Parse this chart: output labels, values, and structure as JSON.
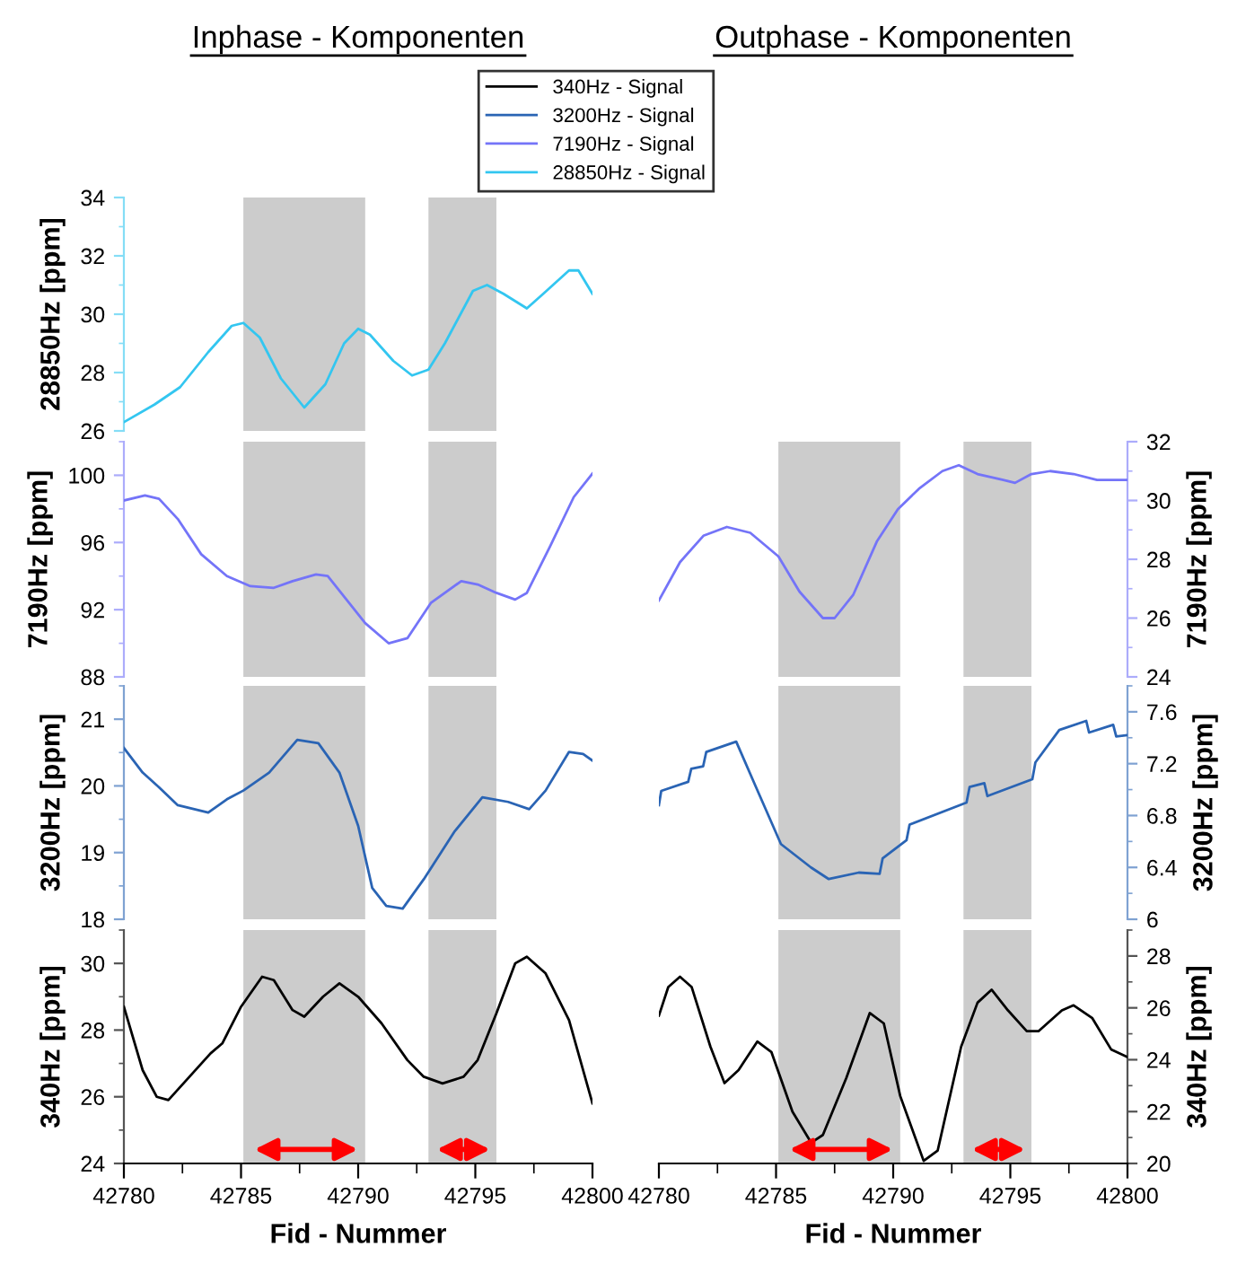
{
  "chart_data": [
    {
      "type": "line",
      "title": "Inphase - Komponenten",
      "ylabel": "28850Hz [ppm]",
      "xlim": [
        42780,
        42800
      ],
      "ylim": [
        26,
        34
      ],
      "yticks": [
        26,
        28,
        30,
        32,
        34
      ],
      "tick_labels": "y",
      "legend": "top",
      "bands": [
        {
          "axis": "x",
          "from": 42785.1,
          "to": 42790.3,
          "color": "#cccccc"
        },
        {
          "axis": "x",
          "from": 42793,
          "to": 42795.9,
          "color": "#cccccc"
        }
      ],
      "series": [
        {
          "name": "28850Hz - Signal",
          "color": "#33c6f0",
          "x": [
            42780,
            42781.3,
            42782.4,
            42783.6,
            42784.6,
            42785.1,
            42785.8,
            42786.7,
            42787.7,
            42788.6,
            42789.4,
            42790,
            42790.5,
            42791.5,
            42792.3,
            42793,
            42793.7,
            42794.9,
            42795.5,
            42796.2,
            42797.2,
            42797.9,
            42799,
            42799.4,
            42800
          ],
          "values": [
            26.3,
            26.9,
            27.5,
            28.7,
            29.6,
            29.7,
            29.2,
            27.8,
            26.8,
            27.6,
            29.0,
            29.5,
            29.3,
            28.4,
            27.9,
            28.1,
            29.0,
            30.8,
            31.0,
            30.7,
            30.2,
            30.7,
            31.5,
            31.5,
            30.7
          ]
        }
      ]
    },
    {
      "type": "line",
      "ylabel": "7190Hz [ppm]",
      "xlim": [
        42780,
        42800
      ],
      "ylim": [
        88,
        102
      ],
      "yticks": [
        88,
        92,
        96,
        100
      ],
      "tick_labels": "y",
      "bands": [
        {
          "axis": "x",
          "from": 42785.1,
          "to": 42790.3,
          "color": "#cccccc"
        },
        {
          "axis": "x",
          "from": 42793,
          "to": 42795.9,
          "color": "#cccccc"
        }
      ],
      "series": [
        {
          "name": "7190Hz - Signal",
          "color": "#7474f8",
          "x": [
            42780,
            42780.9,
            42781.5,
            42782.3,
            42783.3,
            42784.4,
            42785.4,
            42786.4,
            42787.2,
            42788.2,
            42788.7,
            42789.5,
            42790.3,
            42791.3,
            42792.1,
            42793.1,
            42794.4,
            42795.1,
            42795.9,
            42796.7,
            42797.2,
            42798.2,
            42799.2,
            42800
          ],
          "values": [
            98.5,
            98.8,
            98.6,
            97.4,
            95.3,
            94.0,
            93.4,
            93.3,
            93.7,
            94.1,
            94.0,
            92.6,
            91.2,
            90.0,
            90.3,
            92.4,
            93.7,
            93.5,
            93.0,
            92.6,
            93.0,
            95.8,
            98.7,
            100.1
          ]
        }
      ]
    },
    {
      "type": "line",
      "ylabel": "3200Hz [ppm]",
      "xlim": [
        42780,
        42800
      ],
      "ylim": [
        18,
        21.5
      ],
      "yticks": [
        18,
        19,
        20,
        21
      ],
      "tick_labels": "y",
      "bands": [
        {
          "axis": "x",
          "from": 42785.1,
          "to": 42790.3,
          "color": "#cccccc"
        },
        {
          "axis": "x",
          "from": 42793,
          "to": 42795.9,
          "color": "#cccccc"
        }
      ],
      "series": [
        {
          "name": "3200Hz - Signal",
          "color": "#2a64b4",
          "x": [
            42780,
            42780.8,
            42781.5,
            42782.3,
            42783.6,
            42784.4,
            42785.1,
            42786.2,
            42787.4,
            42788.3,
            42789.2,
            42790,
            42790.6,
            42791.2,
            42791.9,
            42792.8,
            42794.1,
            42795.3,
            42796.4,
            42797.3,
            42798,
            42799,
            42799.6,
            42800
          ],
          "values": [
            20.57,
            20.2,
            19.98,
            19.71,
            19.6,
            19.8,
            19.93,
            20.2,
            20.69,
            20.64,
            20.2,
            19.4,
            18.47,
            18.2,
            18.16,
            18.6,
            19.31,
            19.83,
            19.76,
            19.65,
            19.93,
            20.51,
            20.48,
            20.38
          ]
        }
      ]
    },
    {
      "type": "line",
      "ylabel": "340Hz [ppm]",
      "xlabel": "Fid - Nummer",
      "xlim": [
        42780,
        42800
      ],
      "xticks": [
        42780,
        42785,
        42790,
        42795,
        42800
      ],
      "ylim": [
        24,
        31
      ],
      "yticks": [
        24,
        26,
        28,
        30
      ],
      "bands": [
        {
          "axis": "x",
          "from": 42785.1,
          "to": 42790.3,
          "color": "#cccccc"
        },
        {
          "axis": "x",
          "from": 42793,
          "to": 42795.9,
          "color": "#cccccc"
        }
      ],
      "series": [
        {
          "name": "340Hz - Signal",
          "color": "#000000",
          "x": [
            42780,
            42780.8,
            42781.4,
            42781.9,
            42782.8,
            42783.7,
            42784.2,
            42785,
            42785.9,
            42786.4,
            42787.2,
            42787.7,
            42788.5,
            42789.2,
            42790,
            42791,
            42792.1,
            42792.8,
            42793.6,
            42794.5,
            42795.1,
            42795.9,
            42796.7,
            42797.2,
            42798,
            42799,
            42800
          ],
          "values": [
            28.7,
            26.8,
            26.0,
            25.9,
            26.6,
            27.3,
            27.6,
            28.7,
            29.6,
            29.5,
            28.6,
            28.4,
            29.0,
            29.4,
            29.0,
            28.2,
            27.1,
            26.6,
            26.4,
            26.6,
            27.1,
            28.5,
            30.0,
            30.2,
            29.7,
            28.3,
            25.8
          ]
        }
      ]
    },
    {
      "type": "line",
      "title": "Outphase - Komponenten",
      "y2label": "7190Hz [ppm]",
      "xlim": [
        42780,
        42800
      ],
      "y2lim": [
        24,
        32
      ],
      "y2ticks": [
        24,
        26,
        28,
        30,
        32
      ],
      "tick_labels": "y",
      "bands": [
        {
          "axis": "x",
          "from": 42785.1,
          "to": 42790.3,
          "color": "#cccccc"
        },
        {
          "axis": "x",
          "from": 42793,
          "to": 42795.9,
          "color": "#cccccc"
        }
      ],
      "series": [
        {
          "axis": "y2",
          "color": "#7474f8",
          "x": [
            42780,
            42780.9,
            42781.9,
            42782.9,
            42783.9,
            42785.1,
            42786,
            42787,
            42787.5,
            42788.3,
            42789.3,
            42790.2,
            42791.1,
            42792.1,
            42792.8,
            42793.6,
            42794.7,
            42795.2,
            42795.9,
            42796.7,
            42797.7,
            42798.7,
            42800
          ],
          "values": [
            26.6,
            27.9,
            28.8,
            29.1,
            28.9,
            28.1,
            26.9,
            26.0,
            26.0,
            26.8,
            28.6,
            29.7,
            30.4,
            31.0,
            31.2,
            30.9,
            30.7,
            30.6,
            30.9,
            31.0,
            30.9,
            30.7,
            30.7
          ]
        }
      ]
    },
    {
      "type": "line",
      "y2label": "3200Hz [ppm]",
      "xlim": [
        42780,
        42800
      ],
      "y2lim": [
        6,
        7.8
      ],
      "y2ticks": [
        {
          "value": 6,
          "label": "6"
        },
        6.4,
        6.8,
        7.2,
        7.6
      ],
      "tick_labels": "y",
      "bands": [
        {
          "axis": "x",
          "from": 42785.1,
          "to": 42790.3,
          "color": "#cccccc"
        },
        {
          "axis": "x",
          "from": 42793,
          "to": 42795.9,
          "color": "#cccccc"
        }
      ],
      "series": [
        {
          "axis": "y2",
          "color": "#2a64b4",
          "x": [
            42780,
            42780.1,
            42781.25,
            42781.38,
            42781.89,
            42782.02,
            42783.3,
            42784.19,
            42785.21,
            42786.49,
            42787.25,
            42788.53,
            42789.42,
            42789.55,
            42790.57,
            42790.7,
            42793.13,
            42793.26,
            42793.89,
            42794.02,
            42795.94,
            42796.07,
            42797.09,
            42798.24,
            42798.36,
            42799.39,
            42799.52,
            42800
          ],
          "values": [
            6.88,
            6.99,
            7.06,
            7.16,
            7.18,
            7.29,
            7.37,
            7.0,
            6.58,
            6.4,
            6.31,
            6.36,
            6.35,
            6.47,
            6.61,
            6.73,
            6.9,
            7.02,
            7.05,
            6.95,
            7.08,
            7.21,
            7.46,
            7.53,
            7.44,
            7.5,
            7.41,
            7.42
          ]
        }
      ]
    },
    {
      "type": "line",
      "y2label": "340Hz [ppm]",
      "xlabel": "Fid - Nummer",
      "xlim": [
        42780,
        42800
      ],
      "xticks": [
        42780,
        42785,
        42790,
        42795,
        42800
      ],
      "y2lim": [
        20,
        29
      ],
      "y2ticks": [
        20,
        22,
        24,
        26,
        28
      ],
      "bands": [
        {
          "axis": "x",
          "from": 42785.1,
          "to": 42790.3,
          "color": "#cccccc"
        },
        {
          "axis": "x",
          "from": 42793,
          "to": 42795.9,
          "color": "#cccccc"
        }
      ],
      "series": [
        {
          "axis": "y2",
          "color": "#000000",
          "x": [
            42780,
            42780.4,
            42780.9,
            42781.4,
            42782.2,
            42782.8,
            42783.4,
            42784.2,
            42784.8,
            42785.7,
            42786.5,
            42787,
            42788,
            42789,
            42789.6,
            42790.3,
            42791.3,
            42791.9,
            42792.9,
            42793.6,
            42794.2,
            42794.9,
            42795.7,
            42796.2,
            42797.2,
            42797.7,
            42798.5,
            42799.3,
            42800
          ],
          "values": [
            25.7,
            26.8,
            27.2,
            26.8,
            24.5,
            23.1,
            23.6,
            24.7,
            24.3,
            22.0,
            20.8,
            21.1,
            23.3,
            25.8,
            25.4,
            22.6,
            20.1,
            20.5,
            24.5,
            26.2,
            26.7,
            25.9,
            25.1,
            25.1,
            25.9,
            26.1,
            25.6,
            24.4,
            24.1
          ]
        }
      ]
    }
  ]
}
